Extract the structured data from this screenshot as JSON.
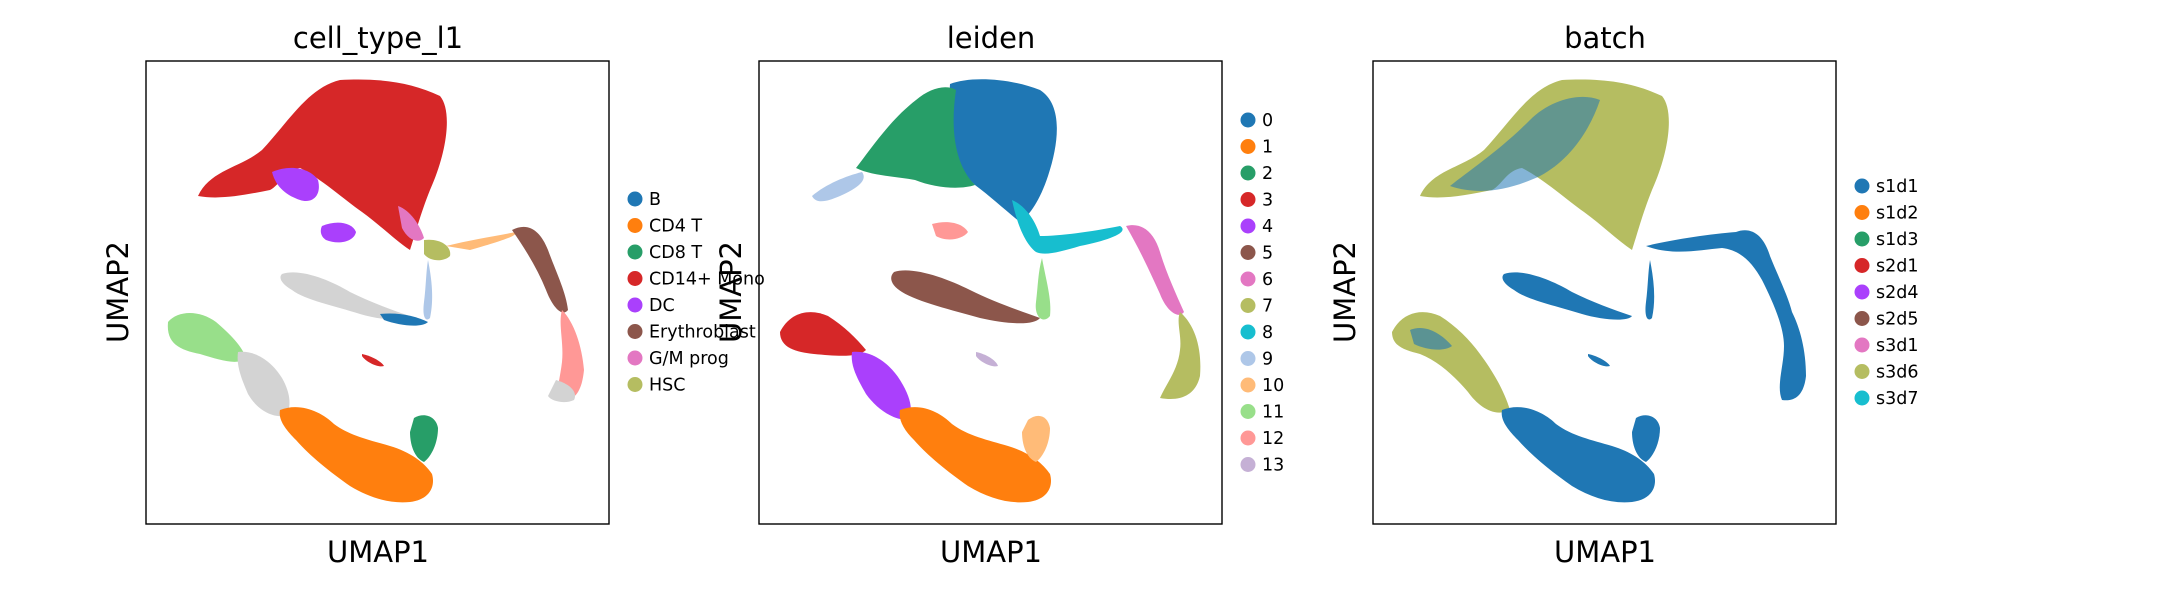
{
  "chart_data": [
    {
      "type": "scatter",
      "title": "cell_type_l1",
      "xlabel": "UMAP1",
      "ylabel": "UMAP2",
      "ticks": "none",
      "grid": false,
      "legend_position": "right",
      "legend": [
        {
          "label": "B",
          "color": "#1f77b4"
        },
        {
          "label": "CD4 T",
          "color": "#ff7f0e"
        },
        {
          "label": "CD8 T",
          "color": "#279e68"
        },
        {
          "label": "CD14+ Mono",
          "color": "#d62728"
        },
        {
          "label": "DC",
          "color": "#aa40fc"
        },
        {
          "label": "Erythroblast",
          "color": "#8c564b"
        },
        {
          "label": "G/M prog",
          "color": "#e377c2"
        },
        {
          "label": "HSC",
          "color": "#b5bd61"
        }
      ]
    },
    {
      "type": "scatter",
      "title": "leiden",
      "xlabel": "UMAP1",
      "ylabel": "UMAP2",
      "ticks": "none",
      "grid": false,
      "legend_position": "right",
      "legend": [
        {
          "label": "0",
          "color": "#1f77b4"
        },
        {
          "label": "1",
          "color": "#ff7f0e"
        },
        {
          "label": "2",
          "color": "#279e68"
        },
        {
          "label": "3",
          "color": "#d62728"
        },
        {
          "label": "4",
          "color": "#aa40fc"
        },
        {
          "label": "5",
          "color": "#8c564b"
        },
        {
          "label": "6",
          "color": "#e377c2"
        },
        {
          "label": "7",
          "color": "#b5bd61"
        },
        {
          "label": "8",
          "color": "#17becf"
        },
        {
          "label": "9",
          "color": "#aec7e8"
        },
        {
          "label": "10",
          "color": "#ffbb78"
        },
        {
          "label": "11",
          "color": "#98df8a"
        },
        {
          "label": "12",
          "color": "#ff9896"
        },
        {
          "label": "13",
          "color": "#c5b0d5"
        }
      ]
    },
    {
      "type": "scatter",
      "title": "batch",
      "xlabel": "UMAP1",
      "ylabel": "UMAP2",
      "ticks": "none",
      "grid": false,
      "legend_position": "right",
      "legend": [
        {
          "label": "s1d1",
          "color": "#1f77b4"
        },
        {
          "label": "s1d2",
          "color": "#ff7f0e"
        },
        {
          "label": "s1d3",
          "color": "#279e68"
        },
        {
          "label": "s2d1",
          "color": "#d62728"
        },
        {
          "label": "s2d4",
          "color": "#aa40fc"
        },
        {
          "label": "s2d5",
          "color": "#8c564b"
        },
        {
          "label": "s3d1",
          "color": "#e377c2"
        },
        {
          "label": "s3d6",
          "color": "#b5bd61"
        },
        {
          "label": "s3d7",
          "color": "#17becf"
        }
      ]
    }
  ]
}
